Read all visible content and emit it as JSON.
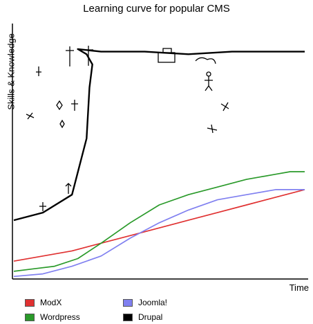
{
  "chart_data": {
    "type": "line",
    "title": "Learning curve for popular CMS",
    "xlabel": "Time",
    "ylabel": "Skills & Knowledge",
    "xlim": [
      0,
      100
    ],
    "ylim": [
      0,
      100
    ],
    "grid": false,
    "legend": "bottom",
    "series": [
      {
        "name": "ModX",
        "color": "#e03131",
        "x": [
          0,
          10,
          20,
          30,
          40,
          50,
          60,
          70,
          80,
          90,
          100
        ],
        "y": [
          7,
          9,
          11,
          14,
          17,
          20,
          23,
          26,
          29,
          32,
          35
        ]
      },
      {
        "name": "Wordpress",
        "color": "#2a9a2a",
        "x": [
          0,
          7,
          14,
          22,
          30,
          40,
          50,
          60,
          70,
          80,
          90,
          95,
          100
        ],
        "y": [
          3,
          4,
          5,
          8,
          14,
          22,
          29,
          33,
          36,
          39,
          41,
          42,
          42
        ]
      },
      {
        "name": "Joomla!",
        "color": "#8080f0",
        "x": [
          0,
          10,
          20,
          30,
          40,
          50,
          60,
          70,
          80,
          90,
          100
        ],
        "y": [
          1,
          2,
          5,
          9,
          16,
          22,
          27,
          31,
          33,
          35,
          35
        ]
      },
      {
        "name": "Drupal",
        "color": "#000000",
        "x": [
          0,
          10,
          20,
          25,
          26,
          27,
          25,
          22,
          30,
          45,
          60,
          75,
          90,
          100
        ],
        "y": [
          23,
          26,
          33,
          55,
          75,
          84,
          88,
          90,
          89,
          89,
          88,
          89,
          89,
          89
        ]
      }
    ]
  }
}
